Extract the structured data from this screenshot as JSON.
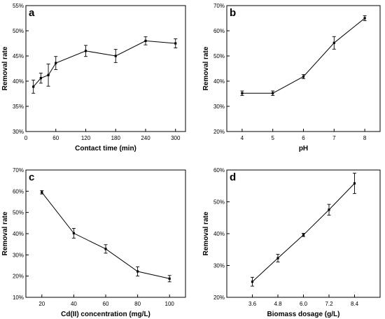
{
  "chart_data": [
    {
      "type": "line",
      "panel_label": "a",
      "xlabel": "Contact time (min)",
      "ylabel": "Removal rate",
      "xlim": [
        0,
        320
      ],
      "ylim": [
        30,
        55
      ],
      "x_ticks": [
        0,
        60,
        120,
        180,
        240,
        300
      ],
      "y_ticks": [
        30,
        35,
        40,
        45,
        50,
        55
      ],
      "y_tick_suffix": "%",
      "x": [
        15,
        30,
        45,
        60,
        120,
        180,
        240,
        300
      ],
      "y": [
        38.9,
        40.6,
        41.2,
        43.6,
        46.0,
        45.0,
        48.0,
        47.5
      ],
      "err": [
        1.3,
        1.0,
        2.2,
        1.3,
        1.1,
        1.3,
        0.8,
        0.9
      ],
      "grid": false
    },
    {
      "type": "line",
      "panel_label": "b",
      "xlabel": "pH",
      "ylabel": "Removal rate",
      "xlim": [
        3.5,
        8.5
      ],
      "ylim": [
        20,
        70
      ],
      "x_ticks": [
        4,
        5,
        6,
        7,
        8
      ],
      "y_ticks": [
        20,
        30,
        40,
        50,
        60,
        70
      ],
      "y_tick_suffix": "%",
      "x": [
        4,
        5,
        6,
        7,
        8
      ],
      "y": [
        35.2,
        35.2,
        41.8,
        55.2,
        65.0
      ],
      "err": [
        0.9,
        0.9,
        0.8,
        2.5,
        1.0
      ],
      "grid": false
    },
    {
      "type": "line",
      "panel_label": "c",
      "xlabel": "Cd(II) concentration (mg/L)",
      "ylabel": "Removal rate",
      "xlim": [
        10,
        110
      ],
      "ylim": [
        10,
        70
      ],
      "x_ticks": [
        20,
        40,
        60,
        80,
        100
      ],
      "y_ticks": [
        10,
        20,
        30,
        40,
        50,
        60,
        70
      ],
      "y_tick_suffix": "%",
      "x": [
        20,
        40,
        60,
        80,
        100
      ],
      "y": [
        59.5,
        40.2,
        32.8,
        22.2,
        18.8
      ],
      "err": [
        0.8,
        2.3,
        2.0,
        2.2,
        1.5
      ],
      "grid": false
    },
    {
      "type": "line",
      "panel_label": "d",
      "xlabel": "Biomass dosage (g/L)",
      "ylabel": "Removal rate",
      "xlim": [
        2.4,
        9.6
      ],
      "ylim": [
        20,
        60
      ],
      "x_ticks": [
        "3.6",
        "4.8",
        "6.0",
        "7.2",
        "8.4"
      ],
      "y_ticks": [
        20,
        30,
        40,
        50,
        60
      ],
      "y_tick_suffix": "%",
      "x": [
        3.6,
        4.8,
        6.0,
        7.2,
        8.4
      ],
      "y": [
        24.9,
        32.3,
        39.6,
        47.5,
        55.8
      ],
      "err": [
        1.4,
        1.2,
        0.5,
        1.7,
        3.2
      ],
      "grid": false
    }
  ]
}
